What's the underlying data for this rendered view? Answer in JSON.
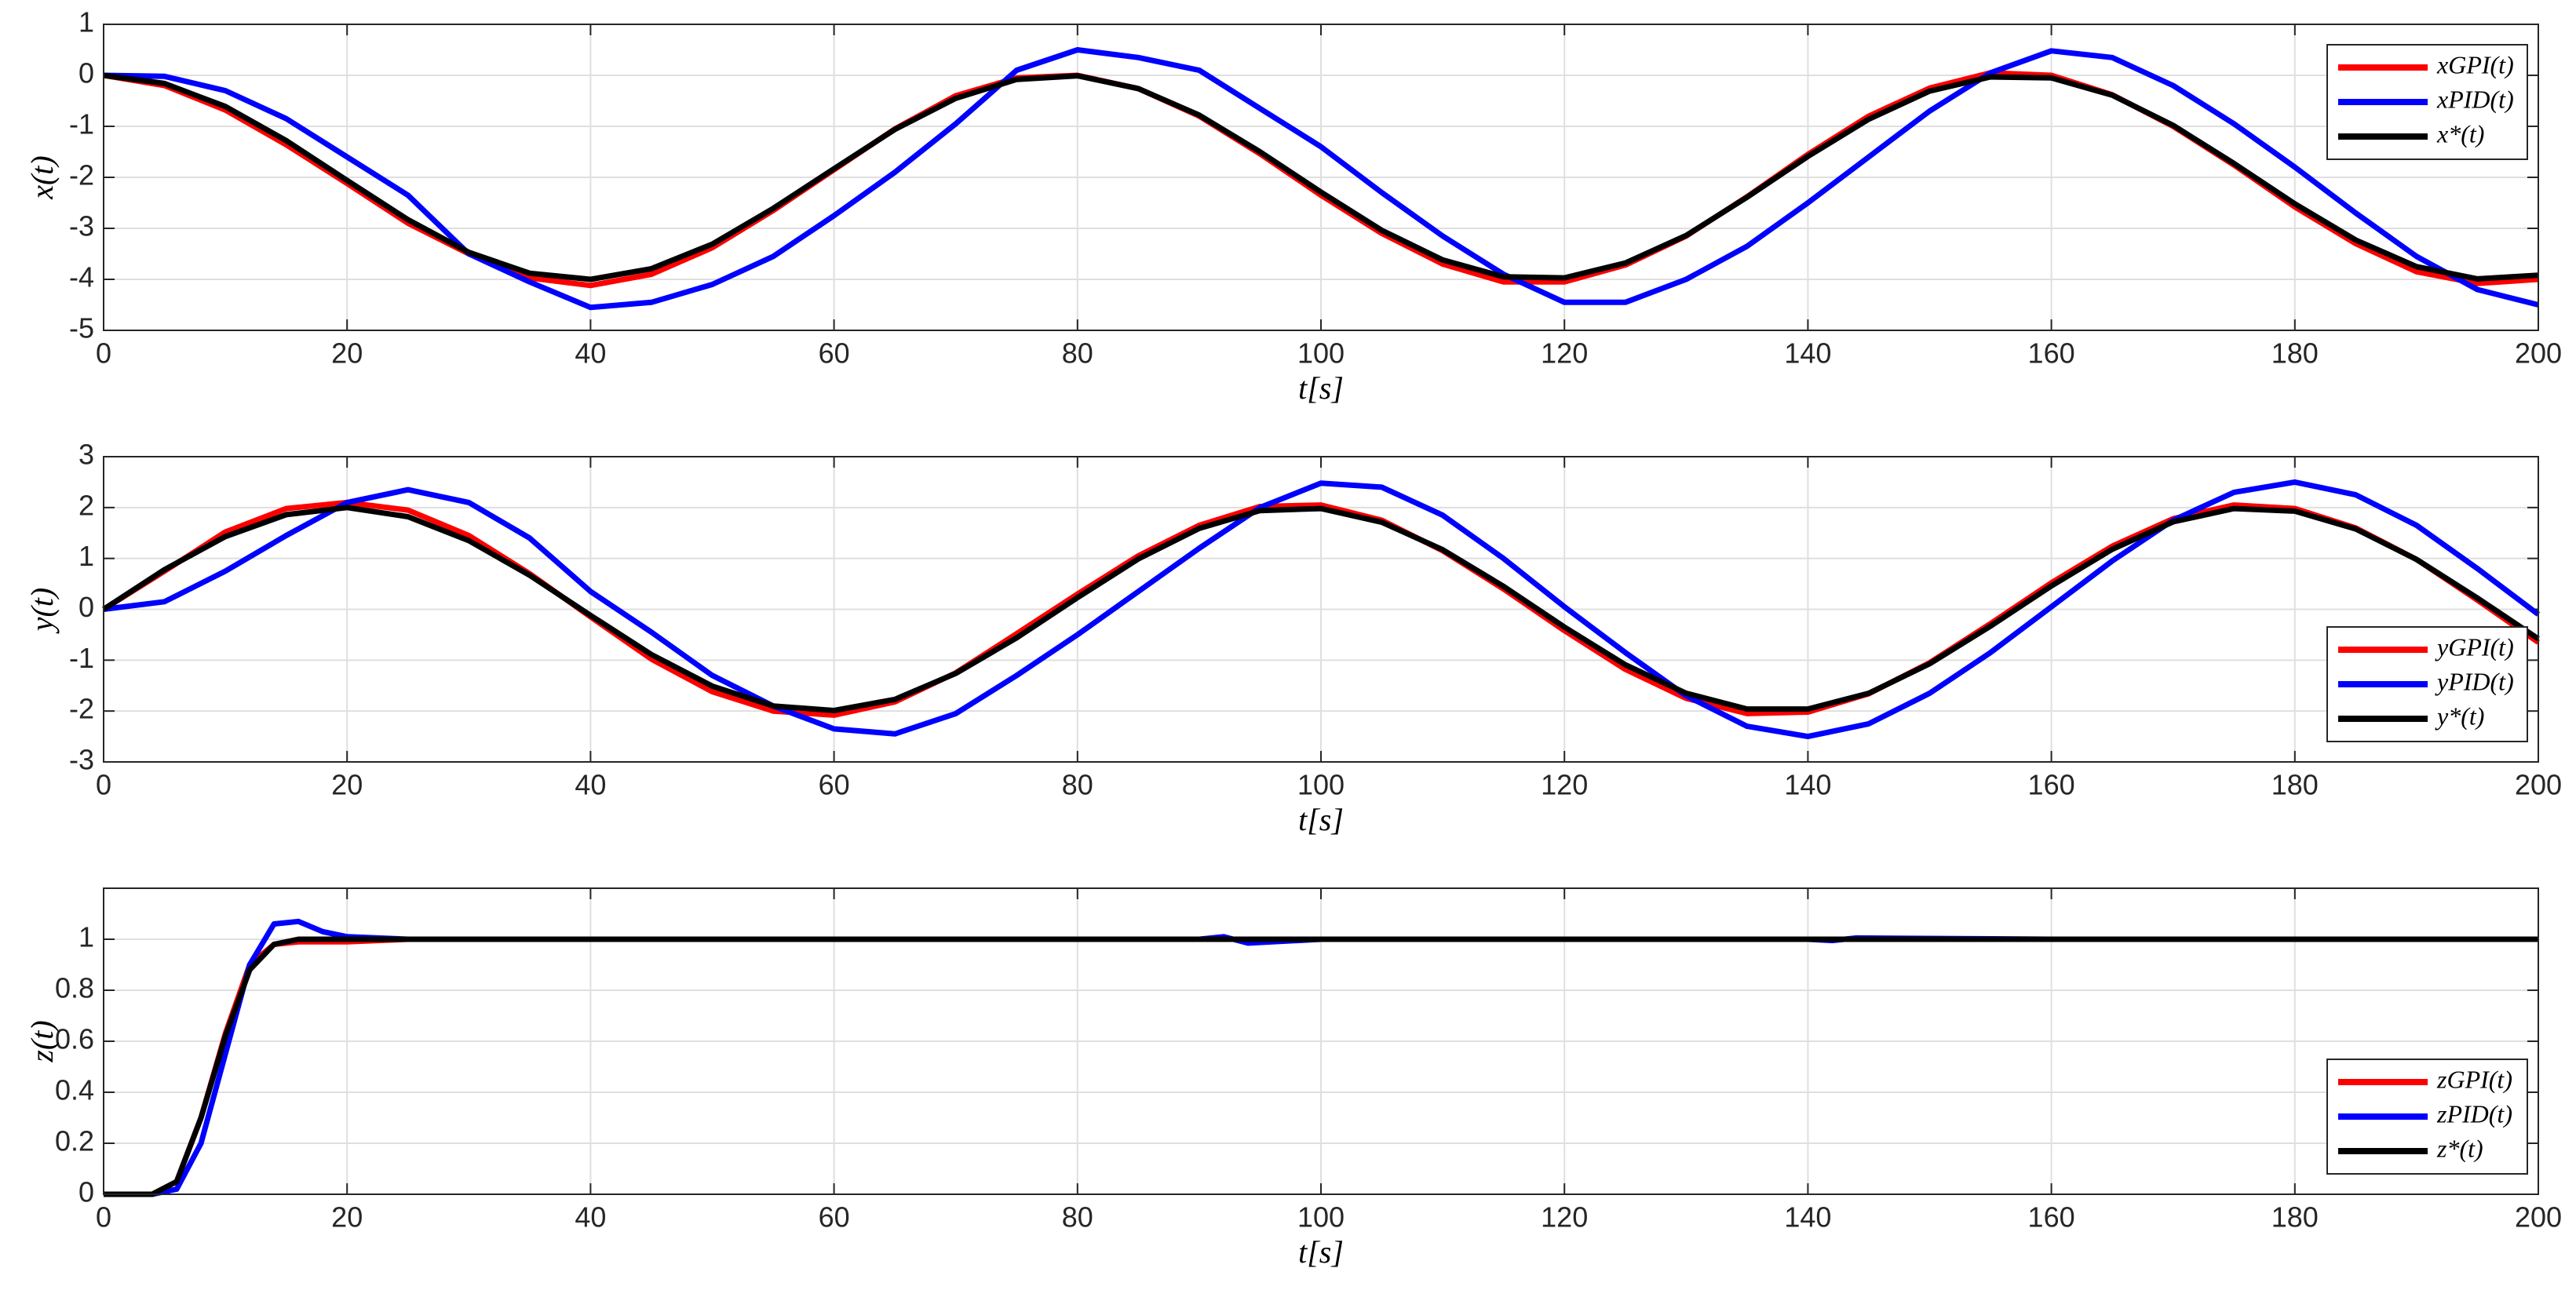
{
  "chart_data": [
    {
      "type": "line",
      "xlabel": "t[s]",
      "ylabel": "x(t)",
      "grid": true,
      "legend": "upper right",
      "xlim": [
        0,
        200
      ],
      "xticks": [
        0,
        20,
        40,
        60,
        80,
        100,
        120,
        140,
        160,
        180,
        200
      ],
      "ylim": [
        -5,
        1
      ],
      "yticks": [
        -5,
        -4,
        -3,
        -2,
        -1,
        0,
        1
      ],
      "x": [
        0,
        5,
        10,
        15,
        20,
        25,
        30,
        35,
        40,
        45,
        50,
        55,
        60,
        65,
        70,
        75,
        80,
        85,
        90,
        95,
        100,
        105,
        110,
        115,
        120,
        125,
        130,
        135,
        140,
        145,
        150,
        155,
        160,
        165,
        170,
        175,
        180,
        185,
        190,
        195,
        200
      ],
      "series": [
        {
          "name": "xGPI(t)",
          "color": "#ff0000",
          "values": [
            0,
            -0.2,
            -0.68,
            -1.36,
            -2.12,
            -2.9,
            -3.5,
            -3.97,
            -4.12,
            -3.9,
            -3.38,
            -2.65,
            -1.85,
            -1.05,
            -0.4,
            -0.05,
            0.0,
            -0.26,
            -0.8,
            -1.54,
            -2.35,
            -3.1,
            -3.7,
            -4.05,
            -4.05,
            -3.72,
            -3.15,
            -2.38,
            -1.55,
            -0.8,
            -0.25,
            0.05,
            0.0,
            -0.38,
            -1.0,
            -1.76,
            -2.58,
            -3.3,
            -3.85,
            -4.08,
            -4.0
          ]
        },
        {
          "name": "xPID(t)",
          "color": "#0000ff",
          "values": [
            0,
            -0.02,
            -0.3,
            -0.85,
            -1.6,
            -2.35,
            -3.5,
            -4.05,
            -4.55,
            -4.45,
            -4.1,
            -3.55,
            -2.75,
            -1.9,
            -0.95,
            0.1,
            0.5,
            0.35,
            0.1,
            -0.65,
            -1.4,
            -2.3,
            -3.15,
            -3.9,
            -4.45,
            -4.45,
            -4.0,
            -3.35,
            -2.5,
            -1.6,
            -0.7,
            0.05,
            0.48,
            0.35,
            -0.2,
            -0.95,
            -1.8,
            -2.7,
            -3.55,
            -4.2,
            -4.5
          ]
        },
        {
          "name": "x*(t)",
          "color": "#000000",
          "values": [
            0,
            -0.16,
            -0.61,
            -1.28,
            -2.06,
            -2.83,
            -3.47,
            -3.88,
            -4.0,
            -3.79,
            -3.31,
            -2.61,
            -1.83,
            -1.06,
            -0.45,
            -0.08,
            -0.01,
            -0.26,
            -0.78,
            -1.5,
            -2.29,
            -3.04,
            -3.62,
            -3.95,
            -3.97,
            -3.68,
            -3.14,
            -2.39,
            -1.59,
            -0.86,
            -0.31,
            -0.03,
            -0.05,
            -0.39,
            -0.98,
            -1.73,
            -2.52,
            -3.23,
            -3.75,
            -3.99,
            -3.92
          ]
        }
      ]
    },
    {
      "type": "line",
      "xlabel": "t[s]",
      "ylabel": "y(t)",
      "grid": true,
      "legend": "lower right",
      "xlim": [
        0,
        200
      ],
      "xticks": [
        0,
        20,
        40,
        60,
        80,
        100,
        120,
        140,
        160,
        180,
        200
      ],
      "ylim": [
        -3,
        3
      ],
      "yticks": [
        -3,
        -2,
        -1,
        0,
        1,
        2,
        3
      ],
      "x": [
        0,
        5,
        10,
        15,
        20,
        25,
        30,
        35,
        40,
        45,
        50,
        55,
        60,
        65,
        70,
        75,
        80,
        85,
        90,
        95,
        100,
        105,
        110,
        115,
        120,
        125,
        130,
        135,
        140,
        145,
        150,
        155,
        160,
        165,
        170,
        175,
        180,
        185,
        190,
        195,
        200
      ],
      "series": [
        {
          "name": "yGPI(t)",
          "color": "#ff0000",
          "values": [
            0,
            0.75,
            1.52,
            1.98,
            2.1,
            1.95,
            1.45,
            0.7,
            -0.15,
            -0.98,
            -1.62,
            -2.0,
            -2.08,
            -1.82,
            -1.25,
            -0.48,
            0.3,
            1.05,
            1.65,
            2.02,
            2.05,
            1.75,
            1.15,
            0.4,
            -0.42,
            -1.18,
            -1.75,
            -2.05,
            -2.02,
            -1.66,
            -1.05,
            -0.28,
            0.52,
            1.24,
            1.78,
            2.05,
            1.98,
            1.6,
            0.98,
            0.18,
            -0.65
          ]
        },
        {
          "name": "yPID(t)",
          "color": "#0000ff",
          "values": [
            0,
            0.15,
            0.75,
            1.45,
            2.1,
            2.35,
            2.1,
            1.4,
            0.35,
            -0.45,
            -1.3,
            -1.9,
            -2.35,
            -2.45,
            -2.05,
            -1.3,
            -0.5,
            0.35,
            1.2,
            2.0,
            2.48,
            2.4,
            1.85,
            1.0,
            0.05,
            -0.85,
            -1.7,
            -2.3,
            -2.5,
            -2.25,
            -1.65,
            -0.85,
            0.05,
            0.95,
            1.75,
            2.3,
            2.5,
            2.25,
            1.65,
            0.8,
            -0.1
          ]
        },
        {
          "name": "y*(t)",
          "color": "#000000",
          "values": [
            0,
            0.78,
            1.43,
            1.86,
            2.0,
            1.82,
            1.35,
            0.67,
            -0.12,
            -0.89,
            -1.51,
            -1.9,
            -1.99,
            -1.77,
            -1.26,
            -0.56,
            0.23,
            0.99,
            1.59,
            1.94,
            1.98,
            1.71,
            1.17,
            0.45,
            -0.35,
            -1.09,
            -1.65,
            -1.96,
            -1.96,
            -1.65,
            -1.07,
            -0.33,
            0.46,
            1.18,
            1.72,
            1.98,
            1.93,
            1.58,
            0.98,
            0.22,
            -0.58
          ]
        }
      ]
    },
    {
      "type": "line",
      "xlabel": "t[s]",
      "ylabel": "z(t)",
      "grid": true,
      "legend": "lower right",
      "xlim": [
        0,
        200
      ],
      "xticks": [
        0,
        20,
        40,
        60,
        80,
        100,
        120,
        140,
        160,
        180,
        200
      ],
      "ylim": [
        0,
        1.2
      ],
      "yticks": [
        0,
        0.2,
        0.4,
        0.6,
        0.8,
        1
      ],
      "x": [
        0,
        4,
        6,
        8,
        10,
        12,
        14,
        16,
        18,
        20,
        25,
        40,
        60,
        80,
        90,
        92,
        94,
        100,
        120,
        140,
        142,
        144,
        160,
        180,
        200
      ],
      "series": [
        {
          "name": "zGPI(t)",
          "color": "#ff0000",
          "values": [
            0,
            0,
            0.05,
            0.3,
            0.63,
            0.9,
            0.98,
            0.99,
            0.99,
            0.99,
            1,
            1,
            1,
            1,
            1,
            1,
            1,
            1,
            1,
            1,
            1,
            1,
            1,
            1,
            1
          ]
        },
        {
          "name": "zPID(t)",
          "color": "#0000ff",
          "values": [
            0,
            0,
            0.02,
            0.2,
            0.55,
            0.9,
            1.06,
            1.07,
            1.03,
            1.01,
            1,
            1,
            1,
            1,
            1,
            1.01,
            0.985,
            1,
            1,
            1,
            0.995,
            1.005,
            1,
            1,
            1
          ]
        },
        {
          "name": "z*(t)",
          "color": "#000000",
          "values": [
            0,
            0,
            0.05,
            0.3,
            0.62,
            0.88,
            0.98,
            1,
            1,
            1,
            1,
            1,
            1,
            1,
            1,
            1,
            1,
            1,
            1,
            1,
            1,
            1,
            1,
            1,
            1
          ]
        }
      ]
    }
  ]
}
